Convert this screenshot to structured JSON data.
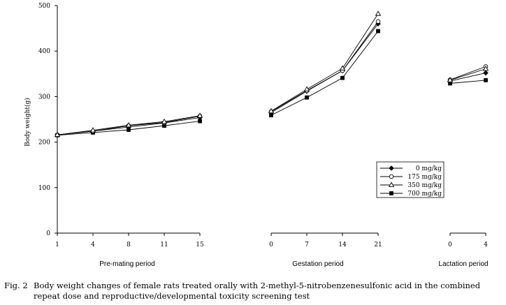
{
  "chart_data": {
    "type": "line",
    "ylabel": "Body weight(g)",
    "ylim": [
      0,
      500
    ],
    "yticks": [
      0,
      100,
      200,
      300,
      400,
      500
    ],
    "grid": false,
    "legend_position": "right-middle",
    "panels": [
      {
        "xlabel": "Pre-mating period",
        "x": [
          "1",
          "4",
          "8",
          "11",
          "15"
        ],
        "series": [
          {
            "name": "0 mg/kg",
            "marker": "filled-diamond",
            "values": [
              216,
              224,
              233,
              242,
              254
            ]
          },
          {
            "name": "175 mg/kg",
            "marker": "open-circle",
            "values": [
              216,
              224,
              236,
              243,
              257
            ]
          },
          {
            "name": "350 mg/kg",
            "marker": "open-triangle",
            "values": [
              216,
              226,
              237,
              245,
              258
            ]
          },
          {
            "name": "700 mg/kg",
            "marker": "filled-square",
            "values": [
              215,
              221,
              227,
              236,
              246
            ]
          }
        ]
      },
      {
        "xlabel": "Gestation period",
        "x": [
          "0",
          "7",
          "14",
          "21"
        ],
        "series": [
          {
            "name": "0 mg/kg",
            "marker": "filled-diamond",
            "values": [
              265,
              312,
              357,
              460
            ]
          },
          {
            "name": "175 mg/kg",
            "marker": "open-circle",
            "values": [
              267,
              313,
              357,
              465
            ]
          },
          {
            "name": "350 mg/kg",
            "marker": "open-triangle",
            "values": [
              268,
              316,
              362,
              482
            ]
          },
          {
            "name": "700 mg/kg",
            "marker": "filled-square",
            "values": [
              259,
              298,
              341,
              444
            ]
          }
        ]
      },
      {
        "xlabel": "Lactation period",
        "x": [
          "0",
          "4"
        ],
        "series": [
          {
            "name": "0 mg/kg",
            "marker": "filled-diamond",
            "values": [
              334,
              352
            ]
          },
          {
            "name": "175 mg/kg",
            "marker": "open-circle",
            "values": [
              337,
              366
            ]
          },
          {
            "name": "350 mg/kg",
            "marker": "open-triangle",
            "values": [
              336,
              361
            ]
          },
          {
            "name": "700 mg/kg",
            "marker": "filled-square",
            "values": [
              329,
              336
            ]
          }
        ]
      }
    ]
  },
  "caption": {
    "number": "Fig. 2",
    "text": "Body weight changes of female rats treated orally with 2-methyl-5-nitrobenzenesulfonic acid in the combined repeat dose and reproductive/developmental toxicity screening test"
  }
}
